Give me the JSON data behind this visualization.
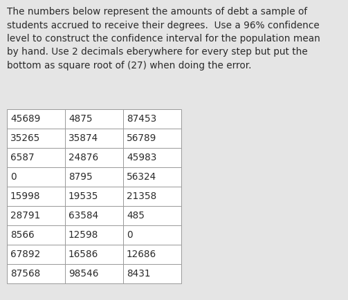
{
  "lines": [
    "The numbers below represent the amounts of debt a sample of",
    "students accrued to receive their degrees.  Use a 96% confidence",
    "level to construct the confidence interval for the population mean",
    "by hand. Use 2 decimals eberywhere for every step but put the",
    "bottom as square root of (27) when doing the error."
  ],
  "table": [
    [
      "45689",
      "4875",
      "87453"
    ],
    [
      "35265",
      "35874",
      "56789"
    ],
    [
      "6587",
      "24876",
      "45983"
    ],
    [
      "0",
      "8795",
      "56324"
    ],
    [
      "15998",
      "19535",
      "21358"
    ],
    [
      "28791",
      "63584",
      "485"
    ],
    [
      "8566",
      "12598",
      "0"
    ],
    [
      "67892",
      "16586",
      "12686"
    ],
    [
      "87568",
      "98546",
      "8431"
    ]
  ],
  "bg_color": "#e5e5e5",
  "text_color": "#2a2a2a",
  "table_bg": "#ffffff",
  "table_border_color": "#999999",
  "font_size_para": 9.8,
  "font_size_table": 9.8
}
